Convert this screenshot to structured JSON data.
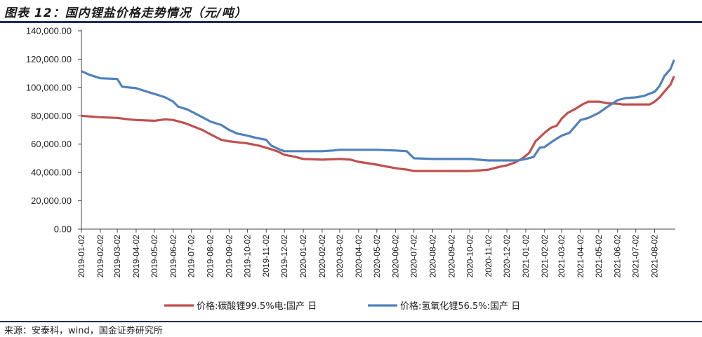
{
  "header": {
    "title": "图表 12：国内锂盐价格走势情况（元/吨）"
  },
  "footer": {
    "source": "来源：安泰科，wind，国金证券研究所"
  },
  "chart_data": {
    "type": "line",
    "title": "图表 12：国内锂盐价格走势情况（元/吨）",
    "ylim": [
      0,
      140000
    ],
    "ytick_labels": [
      "0.00",
      "20,000.00",
      "40,000.00",
      "60,000.00",
      "80,000.00",
      "100,000.00",
      "120,000.00",
      "140,000.00"
    ],
    "xtick_labels": [
      "2019-01-02",
      "2019-02-02",
      "2019-03-02",
      "2019-04-02",
      "2019-05-02",
      "2019-06-02",
      "2019-07-02",
      "2019-08-02",
      "2019-09-02",
      "2019-10-02",
      "2019-11-02",
      "2019-12-02",
      "2020-01-02",
      "2020-02-02",
      "2020-03-02",
      "2020-04-02",
      "2020-05-02",
      "2020-06-02",
      "2020-07-02",
      "2020-08-02",
      "2020-09-02",
      "2020-10-02",
      "2020-11-02",
      "2020-12-02",
      "2021-01-02",
      "2021-02-02",
      "2021-03-02",
      "2021-04-02",
      "2021-05-02",
      "2021-06-02",
      "2021-07-02",
      "2021-08-02"
    ],
    "grid": false,
    "legend_position": "bottom",
    "series": [
      {
        "name": "价格:碳酸锂99.5%电:国产 日",
        "color": "#c0504d",
        "points": [
          [
            "2019-01-02",
            80000
          ],
          [
            "2019-02-02",
            79000
          ],
          [
            "2019-03-02",
            78500
          ],
          [
            "2019-03-20",
            77500
          ],
          [
            "2019-04-02",
            77000
          ],
          [
            "2019-05-02",
            76500
          ],
          [
            "2019-05-20",
            77500
          ],
          [
            "2019-06-02",
            77000
          ],
          [
            "2019-06-20",
            75000
          ],
          [
            "2019-07-02",
            73000
          ],
          [
            "2019-07-20",
            70000
          ],
          [
            "2019-08-02",
            67000
          ],
          [
            "2019-08-20",
            63000
          ],
          [
            "2019-09-02",
            62000
          ],
          [
            "2019-10-02",
            60500
          ],
          [
            "2019-10-20",
            59000
          ],
          [
            "2019-11-02",
            57500
          ],
          [
            "2019-11-20",
            55000
          ],
          [
            "2019-12-02",
            52500
          ],
          [
            "2019-12-20",
            51000
          ],
          [
            "2020-01-02",
            49500
          ],
          [
            "2020-02-02",
            49000
          ],
          [
            "2020-03-02",
            49500
          ],
          [
            "2020-03-20",
            49000
          ],
          [
            "2020-04-02",
            47500
          ],
          [
            "2020-05-02",
            45500
          ],
          [
            "2020-05-20",
            44000
          ],
          [
            "2020-06-02",
            43000
          ],
          [
            "2020-06-20",
            42000
          ],
          [
            "2020-07-02",
            41000
          ],
          [
            "2020-08-02",
            41000
          ],
          [
            "2020-09-02",
            41000
          ],
          [
            "2020-10-02",
            41000
          ],
          [
            "2020-10-20",
            41500
          ],
          [
            "2020-11-02",
            42000
          ],
          [
            "2020-11-20",
            44000
          ],
          [
            "2020-12-02",
            45000
          ],
          [
            "2020-12-15",
            47000
          ],
          [
            "2020-12-28",
            50000
          ],
          [
            "2021-01-08",
            54000
          ],
          [
            "2021-01-18",
            62000
          ],
          [
            "2021-02-02",
            68000
          ],
          [
            "2021-02-12",
            71500
          ],
          [
            "2021-02-22",
            73000
          ],
          [
            "2021-03-02",
            78000
          ],
          [
            "2021-03-12",
            82000
          ],
          [
            "2021-03-25",
            85000
          ],
          [
            "2021-04-05",
            88000
          ],
          [
            "2021-04-15",
            90000
          ],
          [
            "2021-05-02",
            90000
          ],
          [
            "2021-05-15",
            89000
          ],
          [
            "2021-06-02",
            88500
          ],
          [
            "2021-06-10",
            88000
          ],
          [
            "2021-07-02",
            88000
          ],
          [
            "2021-07-25",
            88000
          ],
          [
            "2021-08-02",
            90000
          ],
          [
            "2021-08-10",
            93000
          ],
          [
            "2021-08-18",
            97000
          ],
          [
            "2021-08-28",
            102000
          ],
          [
            "2021-09-03",
            108000
          ]
        ]
      },
      {
        "name": "价格:氢氧化锂56.5%:国产 日",
        "color": "#4f81bd",
        "points": [
          [
            "2019-01-02",
            111500
          ],
          [
            "2019-01-15",
            109000
          ],
          [
            "2019-02-02",
            106500
          ],
          [
            "2019-03-02",
            106000
          ],
          [
            "2019-03-10",
            100500
          ],
          [
            "2019-04-02",
            99500
          ],
          [
            "2019-04-20",
            97000
          ],
          [
            "2019-05-02",
            95500
          ],
          [
            "2019-05-20",
            93000
          ],
          [
            "2019-06-02",
            90000
          ],
          [
            "2019-06-10",
            86500
          ],
          [
            "2019-06-25",
            84500
          ],
          [
            "2019-07-02",
            83000
          ],
          [
            "2019-07-20",
            79000
          ],
          [
            "2019-08-02",
            76000
          ],
          [
            "2019-08-20",
            73500
          ],
          [
            "2019-09-02",
            70000
          ],
          [
            "2019-09-15",
            67500
          ],
          [
            "2019-10-02",
            66000
          ],
          [
            "2019-10-15",
            64500
          ],
          [
            "2019-11-02",
            63000
          ],
          [
            "2019-11-10",
            59000
          ],
          [
            "2019-11-25",
            56000
          ],
          [
            "2019-12-02",
            55000
          ],
          [
            "2020-01-02",
            55000
          ],
          [
            "2020-02-02",
            55000
          ],
          [
            "2020-02-20",
            55500
          ],
          [
            "2020-03-02",
            56000
          ],
          [
            "2020-04-02",
            56000
          ],
          [
            "2020-05-02",
            56000
          ],
          [
            "2020-06-02",
            55500
          ],
          [
            "2020-06-20",
            55000
          ],
          [
            "2020-07-02",
            50000
          ],
          [
            "2020-08-02",
            49500
          ],
          [
            "2020-09-02",
            49500
          ],
          [
            "2020-10-02",
            49500
          ],
          [
            "2020-11-02",
            48500
          ],
          [
            "2020-12-02",
            48500
          ],
          [
            "2020-12-20",
            48500
          ],
          [
            "2021-01-02",
            49500
          ],
          [
            "2021-01-15",
            51000
          ],
          [
            "2021-01-25",
            57500
          ],
          [
            "2021-02-02",
            58000
          ],
          [
            "2021-02-15",
            62000
          ],
          [
            "2021-03-02",
            66000
          ],
          [
            "2021-03-15",
            68000
          ],
          [
            "2021-03-25",
            73000
          ],
          [
            "2021-04-02",
            77000
          ],
          [
            "2021-04-15",
            78500
          ],
          [
            "2021-05-02",
            82000
          ],
          [
            "2021-05-15",
            86000
          ],
          [
            "2021-06-02",
            91000
          ],
          [
            "2021-06-15",
            92500
          ],
          [
            "2021-07-02",
            93000
          ],
          [
            "2021-07-15",
            94000
          ],
          [
            "2021-08-02",
            97000
          ],
          [
            "2021-08-10",
            101000
          ],
          [
            "2021-08-18",
            108000
          ],
          [
            "2021-08-28",
            113000
          ],
          [
            "2021-09-03",
            119500
          ]
        ]
      }
    ]
  }
}
